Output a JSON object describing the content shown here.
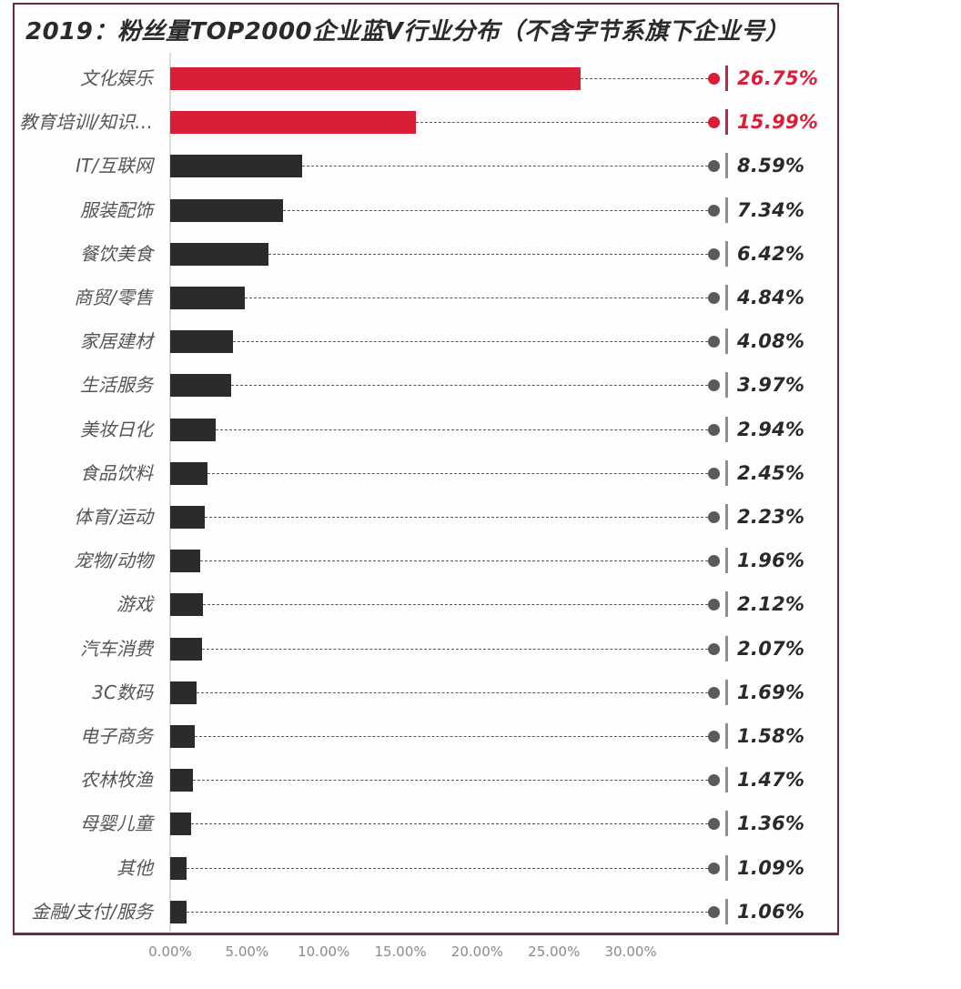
{
  "chart_data": {
    "type": "bar",
    "orientation": "horizontal",
    "title": "2019：粉丝量TOP2000企业蓝V行业分布（不含字节系旗下企业号）",
    "xlabel": "",
    "ylabel": "",
    "xlim": [
      0,
      30
    ],
    "x_ticks": [
      "0.00%",
      "5.00%",
      "10.00%",
      "15.00%",
      "20.00%",
      "25.00%",
      "30.00%"
    ],
    "grid": false,
    "legend": null,
    "categories": [
      "文化娱乐",
      "教育培训/知识…",
      "IT/互联网",
      "服装配饰",
      "餐饮美食",
      "商贸/零售",
      "家居建材",
      "生活服务",
      "美妆日化",
      "食品饮料",
      "体育/运动",
      "宠物/动物",
      "游戏",
      "汽车消费",
      "3C数码",
      "电子商务",
      "农林牧渔",
      "母婴儿童",
      "其他",
      "金融/支付/服务"
    ],
    "values": [
      26.75,
      15.99,
      8.59,
      7.34,
      6.42,
      4.84,
      4.08,
      3.97,
      2.94,
      2.45,
      2.23,
      1.96,
      2.12,
      2.07,
      1.69,
      1.58,
      1.47,
      1.36,
      1.09,
      1.06
    ],
    "value_labels": [
      "26.75%",
      "15.99%",
      "8.59%",
      "7.34%",
      "6.42%",
      "4.84%",
      "4.08%",
      "3.97%",
      "2.94%",
      "2.45%",
      "2.23%",
      "1.96%",
      "2.12%",
      "2.07%",
      "1.69%",
      "1.58%",
      "1.47%",
      "1.36%",
      "1.09%",
      "1.06%"
    ],
    "highlighted": [
      true,
      true,
      false,
      false,
      false,
      false,
      false,
      false,
      false,
      false,
      false,
      false,
      false,
      false,
      false,
      false,
      false,
      false,
      false,
      false
    ]
  },
  "colors": {
    "highlight": "#d91f38",
    "bar": "#2b2b2b",
    "dot": "#5a5a5a",
    "frame": "#6e2a3c",
    "label_text": "#555555",
    "value_text": "#2a2a2a"
  }
}
